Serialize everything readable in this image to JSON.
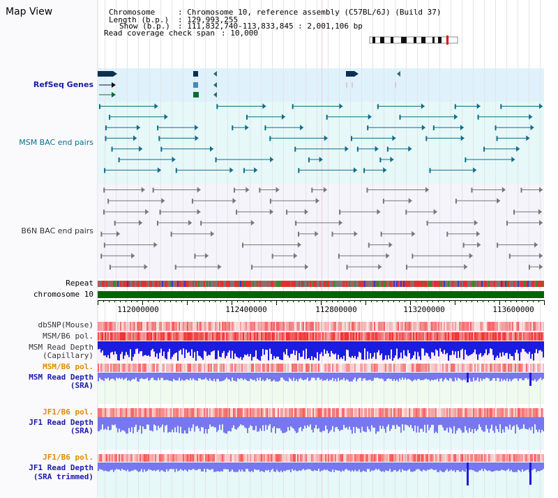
{
  "title": "Map View",
  "header": {
    "chromosome_key": "Chromosome",
    "chromosome_val": ": Chromosome 10, reference assembly (C57BL/6J) (Build 37)",
    "length_key": "Length (b.p.)",
    "length_val": ": 129,993,255",
    "show_key": "Show (b.p.)",
    "show_val": ": 111,832,740-113,833,845 : 2,001,106 bp",
    "coverage_key": "Read coverage check span",
    "coverage_val": ": 10,000"
  },
  "tracks": {
    "refseq": "RefSeq Genes",
    "msm_bac": "MSM BAC end pairs",
    "b6n_bac": "B6N BAC end pairs",
    "repeat": "Repeat",
    "chromosome": "chromosome 10",
    "dbsnp": "dbSNP(Mouse)",
    "msm_b6_pol_1": "MSM/B6 pol.",
    "msm_depth_cap_1": "MSM Read Depth",
    "msm_depth_cap_2": "(Capillary)",
    "msm_b6_pol_2": "MSM/B6 pol.",
    "msm_depth_sra_1": "MSM Read Depth",
    "msm_depth_sra_2": "(SRA)",
    "jf1_b6_pol_1": "JF1/B6 pol.",
    "jf1_depth_sra_1": "JF1 Read Depth",
    "jf1_depth_sra_2": "(SRA)",
    "jf1_b6_pol_2": "JF1/B6 pol.",
    "jf1_depth_trim_1": "JF1 Read Depth",
    "jf1_depth_trim_2": "(SRA trimmed)"
  },
  "axis": {
    "ticks": [
      "112000000",
      "112400000",
      "112800000",
      "113200000",
      "113600000"
    ]
  },
  "colors": {
    "refseq_bg": "#dff2fb",
    "msm_bac_bg": "#e6f8f8",
    "b6n_bac_bg": "#f4f4fa",
    "chromosome_bar": "#006600",
    "depth_blue": "#1c1ce0",
    "depth_light": "#7777f0",
    "pol_red": "#f03333",
    "teal_feature": "#0d6d8a",
    "gray_feature": "#777777"
  }
}
